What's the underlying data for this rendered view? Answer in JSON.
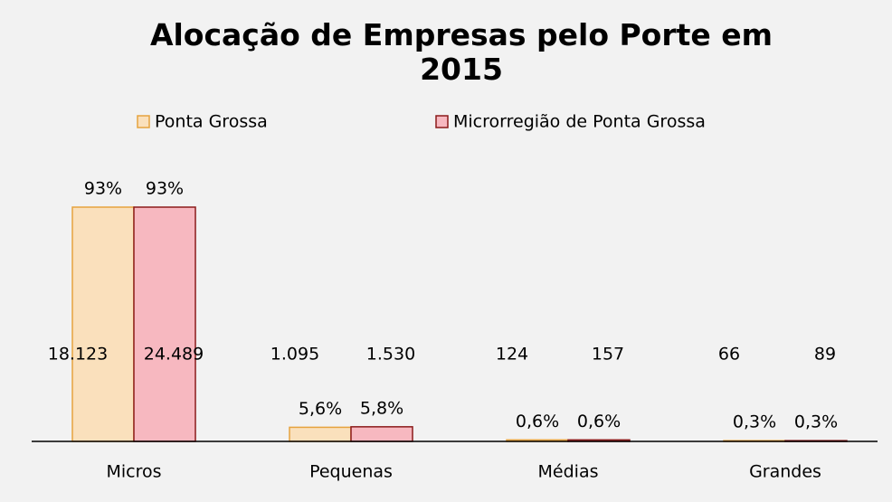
{
  "chart_data": {
    "type": "bar",
    "title": "Alocação de Empresas pelo Porte em 2015",
    "categories": [
      "Micros",
      "Pequenas",
      "Médias",
      "Grandes"
    ],
    "series": [
      {
        "name": "Ponta Grossa",
        "color": "#fae0bc",
        "stroke": "#e6a33e",
        "values": [
          93,
          5.6,
          0.6,
          0.3
        ],
        "value_labels": [
          "93%",
          "5,6%",
          "0,6%",
          "0,3%"
        ],
        "counts": [
          18123,
          1095,
          124,
          66
        ],
        "count_labels": [
          "18.123",
          "1.095",
          "124",
          "66"
        ]
      },
      {
        "name": "Microrregião de Ponta Grossa",
        "color": "#f7b8c0",
        "stroke": "#8b1a1a",
        "values": [
          93,
          5.8,
          0.6,
          0.3
        ],
        "value_labels": [
          "93%",
          "5,8%",
          "0,6%",
          "0,3%"
        ],
        "counts": [
          24489,
          1530,
          157,
          89
        ],
        "count_labels": [
          "24.489",
          "1.530",
          "157",
          "89"
        ]
      }
    ],
    "legend": "top"
  }
}
